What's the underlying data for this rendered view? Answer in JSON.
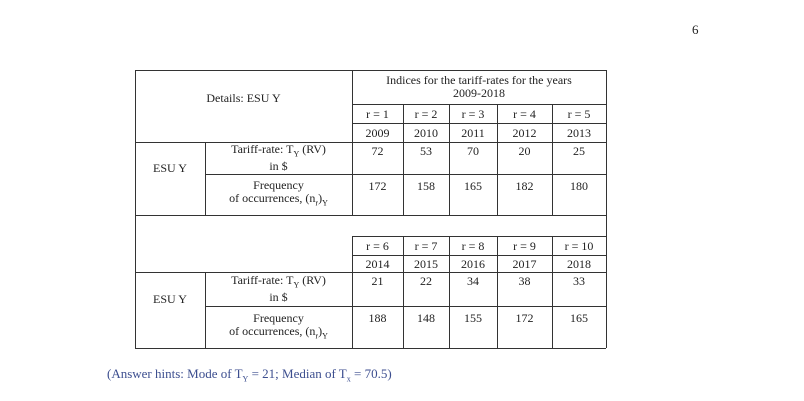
{
  "page_number": "6",
  "header": {
    "details": "Details: ESU Y",
    "indices_title_line1": "Indices for the tariff-rates for the years",
    "indices_title_line2": "2009-2018"
  },
  "blocks": [
    {
      "esu": "ESU Y",
      "r_labels": [
        "r = 1",
        "r = 2",
        "r = 3",
        "r = 4",
        "r = 5"
      ],
      "years": [
        "2009",
        "2010",
        "2011",
        "2012",
        "2013"
      ],
      "tariff_rates": [
        "72",
        "53",
        "70",
        "20",
        "25"
      ],
      "frequencies": [
        "172",
        "158",
        "165",
        "182",
        "180"
      ]
    },
    {
      "esu": "ESU Y",
      "r_labels": [
        "r = 6",
        "r = 7",
        "r = 8",
        "r = 9",
        "r = 10"
      ],
      "years": [
        "2014",
        "2015",
        "2016",
        "2017",
        "2018"
      ],
      "tariff_rates": [
        "21",
        "22",
        "34",
        "38",
        "33"
      ],
      "frequencies": [
        "188",
        "148",
        "155",
        "172",
        "165"
      ]
    }
  ],
  "row_labels": {
    "tariff_line1_pre": "Tariff-rate: T",
    "tariff_line1_sub": "Y",
    "tariff_line1_post": " (RV)",
    "tariff_line2": "in $",
    "freq_line1": "Frequency",
    "freq_line2_pre": "of occurrences, (n",
    "freq_line2_sub1": "r",
    "freq_line2_mid": ")",
    "freq_line2_sub2": "Y"
  },
  "hint": {
    "p1": "(Answer hints: Mode of T",
    "s1": "Y",
    "p2": " = 21; Median of T",
    "s2": "x",
    "p3": " = 70.5)"
  }
}
